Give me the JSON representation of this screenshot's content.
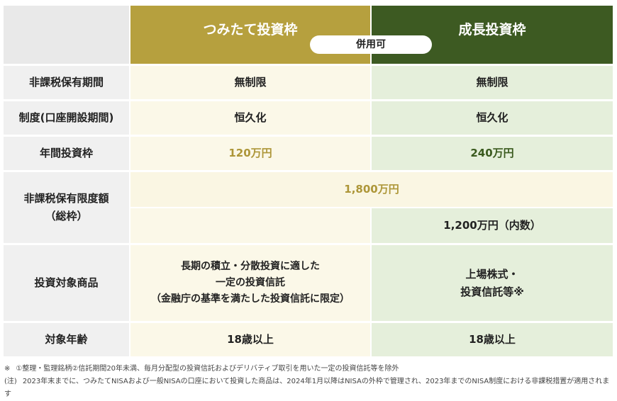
{
  "header": {
    "tsumitate": "つみたて投資枠",
    "seicho": "成長投資枠",
    "badge": "併用可"
  },
  "rows": [
    {
      "label": [
        "非課税保有期間"
      ],
      "tsumitate": [
        "無制限"
      ],
      "seicho": [
        "無制限"
      ]
    },
    {
      "label": [
        "制度(口座開設期間)"
      ],
      "tsumitate": [
        "恒久化"
      ],
      "seicho": [
        "恒久化"
      ]
    },
    {
      "label": [
        "年間投資枠"
      ],
      "tsumitate": [
        "120万円"
      ],
      "seicho": [
        "240万円"
      ]
    },
    {
      "label": [
        "非課税保有限度額",
        "（総枠）"
      ],
      "shared": [
        "1,800万円"
      ],
      "seicho": [
        "1,200万円（内数）"
      ]
    },
    {
      "label": [
        "投資対象商品"
      ],
      "tsumitate": [
        "長期の積立・分散投資に適した",
        "一定の投資信託",
        "（金融庁の基準を満たした投資信託に限定）"
      ],
      "seicho": [
        "上場株式・",
        "投資信託等※"
      ]
    },
    {
      "label": [
        "対象年齢"
      ],
      "tsumitate": [
        "18歳以上"
      ],
      "seicho": [
        "18歳以上"
      ]
    }
  ],
  "notes": [
    {
      "marker": "※",
      "text": "①整理・監理銘柄②信託期間20年未満、毎月分配型の投資信託およびデリバティブ取引を用いた一定の投資信託等を除外"
    },
    {
      "marker": "(注)",
      "text": "2023年末までに、つみたてNISAおよび一般NISAの口座において投資した商品は、2024年1月以降はNISAの外枠で管理され、2023年までのNISA制度における非課税措置が適用されます"
    }
  ]
}
